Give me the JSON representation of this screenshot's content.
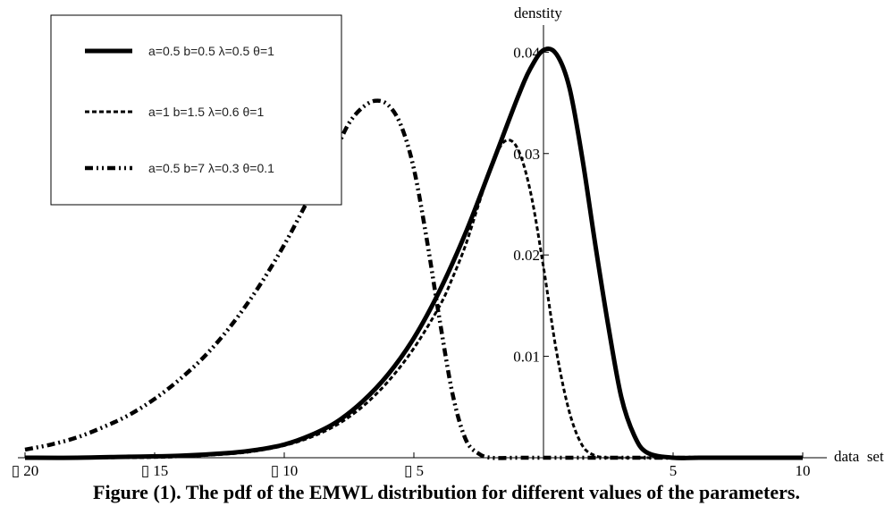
{
  "chart_data": {
    "type": "line",
    "title": "",
    "xlabel": "data  set",
    "ylabel": "denstity",
    "xlim": [
      -20,
      10
    ],
    "ylim": [
      0,
      0.041
    ],
    "x_ticks": [
      {
        "value": -20,
        "label": "▯ 20"
      },
      {
        "value": -15,
        "label": "▯ 15"
      },
      {
        "value": -10,
        "label": "▯ 10"
      },
      {
        "value": -5,
        "label": "▯ 5"
      },
      {
        "value": 5,
        "label": "5"
      },
      {
        "value": 10,
        "label": "10"
      }
    ],
    "y_ticks": [
      {
        "value": 0.01,
        "label": "0.01"
      },
      {
        "value": 0.02,
        "label": "0.02"
      },
      {
        "value": 0.03,
        "label": "0.03"
      },
      {
        "value": 0.04,
        "label": "0.04"
      }
    ],
    "grid": false,
    "legend_position": "top-left",
    "series": [
      {
        "name": "a=0.5  b=0.5  λ=0.5 θ=1",
        "style": "solid",
        "x": [
          -20,
          -18,
          -16,
          -14,
          -12,
          -11,
          -10,
          -9,
          -8,
          -7,
          -6,
          -5,
          -4,
          -3,
          -2,
          -1,
          -0.5,
          0,
          0.5,
          1,
          1.5,
          2,
          2.5,
          3,
          3.5,
          4,
          5,
          6,
          8,
          10
        ],
        "y": [
          0.0,
          0.0,
          0.0001,
          0.0002,
          0.0005,
          0.0008,
          0.0013,
          0.0022,
          0.0035,
          0.0055,
          0.0082,
          0.0118,
          0.0165,
          0.0222,
          0.0288,
          0.0355,
          0.0384,
          0.0402,
          0.0398,
          0.0365,
          0.0295,
          0.021,
          0.013,
          0.006,
          0.0022,
          0.0005,
          0.0,
          0.0,
          0.0,
          0.0
        ]
      },
      {
        "name": "a=1  b=1.5  λ=0.6 θ=1",
        "style": "dotted",
        "x": [
          -20,
          -16,
          -14,
          -12,
          -11,
          -10,
          -9,
          -8,
          -7,
          -6,
          -5,
          -4,
          -3.5,
          -3,
          -2.5,
          -2,
          -1.5,
          -1,
          -0.5,
          0,
          0.5,
          1,
          1.5,
          2,
          2.5,
          3,
          4,
          6,
          10
        ],
        "y": [
          0.0,
          0.0,
          0.0001,
          0.0004,
          0.0007,
          0.0012,
          0.002,
          0.0032,
          0.005,
          0.0075,
          0.0108,
          0.015,
          0.0178,
          0.021,
          0.025,
          0.0288,
          0.0312,
          0.0305,
          0.0262,
          0.0188,
          0.0105,
          0.0045,
          0.0012,
          0.0002,
          0.0,
          0.0,
          0.0,
          0.0,
          0.0
        ]
      },
      {
        "name": "a=0.5  b=7  λ=0.3 θ=0.1",
        "style": "dash-dot",
        "x": [
          -20,
          -19,
          -18,
          -17,
          -16,
          -15,
          -14,
          -13,
          -12,
          -11,
          -10,
          -9,
          -8,
          -7.5,
          -7,
          -6.5,
          -6,
          -5.5,
          -5,
          -4.5,
          -4,
          -3.5,
          -3,
          -2.5,
          -2,
          -1,
          0,
          2,
          5,
          10
        ],
        "y": [
          0.0008,
          0.0013,
          0.002,
          0.003,
          0.0042,
          0.0058,
          0.0078,
          0.0102,
          0.0132,
          0.0168,
          0.021,
          0.0258,
          0.0305,
          0.033,
          0.0345,
          0.0352,
          0.0348,
          0.0328,
          0.0285,
          0.0215,
          0.0135,
          0.0062,
          0.0018,
          0.0004,
          0.0,
          0.0,
          0.0,
          0.0,
          0.0,
          0.0
        ]
      }
    ]
  },
  "caption": "Figure (1). The pdf of the EMWL distribution for different values of the parameters."
}
